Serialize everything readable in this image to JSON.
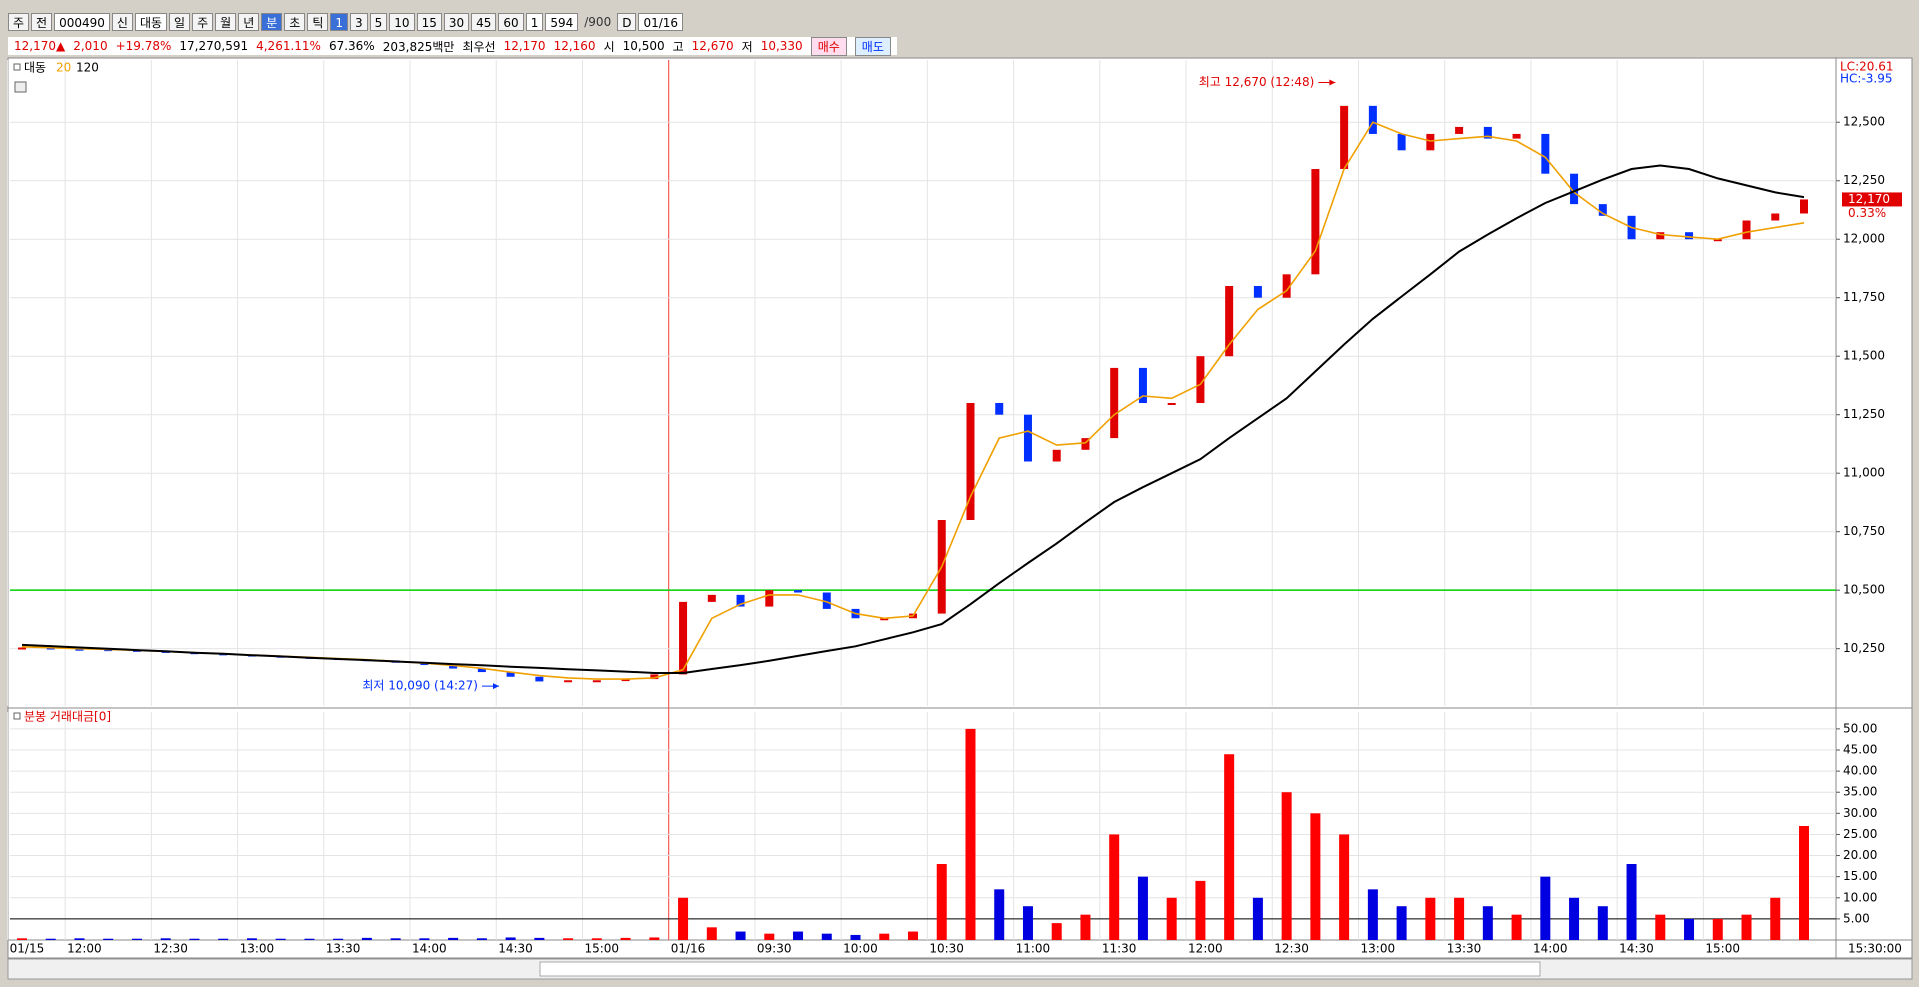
{
  "toolbar": {
    "items": [
      "주",
      "전",
      "000490",
      "신",
      "대동",
      "일",
      "주",
      "월",
      "년",
      "분",
      "초",
      "틱",
      "1",
      "3",
      "5",
      "10",
      "15",
      "30",
      "45",
      "60",
      "1",
      "594",
      "/900",
      "D",
      "01/16"
    ]
  },
  "quote_bar": {
    "items": [
      "12,170▲",
      "2,010",
      "+19.78%",
      "17,270,591",
      "4,261.11%",
      "67.36%",
      "203,825백만",
      "최우선",
      "12,170",
      "12,160",
      "시",
      "10,500",
      "고",
      "12,670",
      "저",
      "10,330",
      "매수",
      "매도"
    ]
  },
  "chart_data": {
    "type": "candlestick",
    "categories": [
      "01/15",
      null,
      "12:00",
      null,
      null,
      "12:30",
      null,
      null,
      "13:00",
      null,
      null,
      "13:30",
      null,
      null,
      "14:00",
      null,
      null,
      "14:30",
      null,
      null,
      "15:00",
      null,
      null,
      "01/16",
      null,
      null,
      "09:30",
      null,
      null,
      "10:00",
      null,
      null,
      "10:30",
      null,
      null,
      "11:00",
      null,
      null,
      "11:30",
      null,
      null,
      "12:00",
      null,
      null,
      "12:30",
      null,
      null,
      "13:00",
      null,
      null,
      "13:30",
      null,
      null,
      "14:00",
      null,
      null,
      "14:30",
      null,
      null,
      "15:00",
      null,
      null,
      null
    ],
    "series": [
      {
        "name": "대동",
        "color": "#e00000",
        "down_color": "#0030ff",
        "values": [
          10255,
          10250,
          10248,
          10245,
          10240,
          10235,
          10230,
          10225,
          10220,
          10215,
          10210,
          10205,
          10200,
          10190,
          10180,
          10165,
          10150,
          10130,
          10110,
          10115,
          10115,
          10120,
          10140,
          10450,
          10480,
          10430,
          10500,
          10490,
          10420,
          10380,
          10380,
          10400,
          10800,
          11300,
          11250,
          11050,
          11100,
          11150,
          11450,
          11300,
          11300,
          11500,
          11800,
          11750,
          11850,
          12300,
          12570,
          12450,
          12380,
          12450,
          12480,
          12430,
          12450,
          12280,
          12150,
          12100,
          12000,
          12030,
          12000,
          12000,
          12080,
          12110,
          12170
        ]
      },
      {
        "name": "20",
        "color": "#f0a000",
        "values": [
          10258,
          10254,
          10250,
          10247,
          10243,
          10238,
          10233,
          10228,
          10223,
          10218,
          10213,
          10208,
          10203,
          10196,
          10188,
          10178,
          10166,
          10150,
          10135,
          10125,
          10120,
          10120,
          10125,
          10160,
          10380,
          10440,
          10480,
          10480,
          10450,
          10400,
          10380,
          10390,
          10600,
          10900,
          11150,
          11180,
          11120,
          11130,
          11250,
          11330,
          11320,
          11380,
          11550,
          11700,
          11780,
          11950,
          12300,
          12500,
          12450,
          12420,
          12430,
          12440,
          12420,
          12350,
          12200,
          12110,
          12050,
          12020,
          12010,
          12000,
          12030,
          12050,
          12070
        ]
      },
      {
        "name": "120",
        "color": "#000000",
        "values": [
          10266,
          10261,
          10255,
          10250,
          10244,
          10239,
          10233,
          10228,
          10222,
          10217,
          10211,
          10206,
          10201,
          10195,
          10190,
          10184,
          10179,
          10173,
          10168,
          10162,
          10157,
          10152,
          10146,
          10146,
          10163,
          10180,
          10198,
          10219,
          10240,
          10260,
          10290,
          10320,
          10355,
          10440,
          10530,
          10616,
          10700,
          10790,
          10877,
          10940,
          11000,
          11060,
          11150,
          11235,
          11320,
          11435,
          11550,
          11660,
          11755,
          11850,
          11947,
          12020,
          12090,
          12155,
          12205,
          12255,
          12300,
          12315,
          12300,
          12260,
          12230,
          12200,
          12180
        ]
      }
    ],
    "ylim": [
      10005,
      12766
    ],
    "yticks": [
      {
        "value": 10250,
        "label": "10,250"
      },
      {
        "value": 10500,
        "label": "10,500"
      },
      {
        "value": 10750,
        "label": "10,750"
      },
      {
        "value": 11000,
        "label": "11,000"
      },
      {
        "value": 11250,
        "label": "11,250"
      },
      {
        "value": 11500,
        "label": "11,500"
      },
      {
        "value": 11750,
        "label": "11,750"
      },
      {
        "value": 12000,
        "label": "12,000"
      },
      {
        "value": 12250,
        "label": "12,250"
      },
      {
        "value": 12500,
        "label": "12,500"
      }
    ],
    "grid": true,
    "reference_line": 10500,
    "reference_color": "#00d000",
    "lc_label": "LC:20.61",
    "hc_label": "HC:-3.95",
    "last_price": {
      "value": 12170,
      "label": "12,170"
    },
    "change_label": "0.33%",
    "x_end_label": "15:30:00",
    "annotations": [
      {
        "text": "최고 12,670 (12:48)",
        "value": 12670,
        "date": "01/16",
        "time": "12:48",
        "color": "#e00000"
      },
      {
        "text": "최저 10,090 (14:27)",
        "value": 10090,
        "date": "01/15",
        "time": "14:27",
        "color": "#0030ff"
      }
    ],
    "volume": {
      "title": "분봉 거래대금[0]",
      "up_color": "#ff0000",
      "down_color": "#0000e0",
      "values": [
        0.4,
        0.3,
        0.4,
        0.3,
        0.3,
        0.4,
        0.3,
        0.3,
        0.4,
        0.3,
        0.3,
        0.3,
        0.5,
        0.4,
        0.4,
        0.5,
        0.4,
        0.6,
        0.5,
        0.4,
        0.4,
        0.5,
        0.6,
        10,
        3,
        2,
        1.5,
        2,
        1.5,
        1.2,
        1.5,
        2,
        18,
        50,
        12,
        8,
        4,
        6,
        25,
        15,
        10,
        14,
        44,
        10,
        35,
        30,
        25,
        12,
        8,
        10,
        10,
        8,
        6,
        15,
        10,
        8,
        18,
        6,
        5,
        5,
        6,
        10,
        27
      ],
      "ylim": [
        0,
        54
      ],
      "yticks": [
        {
          "value": 5,
          "label": "5.00"
        },
        {
          "value": 10,
          "label": "10.00"
        },
        {
          "value": 15,
          "label": "15.00"
        },
        {
          "value": 20,
          "label": "20.00"
        },
        {
          "value": 25,
          "label": "25.00"
        },
        {
          "value": 30,
          "label": "30.00"
        },
        {
          "value": 35,
          "label": "35.00"
        },
        {
          "value": 40,
          "label": "40.00"
        },
        {
          "value": 45,
          "label": "45.00"
        },
        {
          "value": 50,
          "label": "50.00"
        }
      ],
      "reference_line": 5
    }
  }
}
